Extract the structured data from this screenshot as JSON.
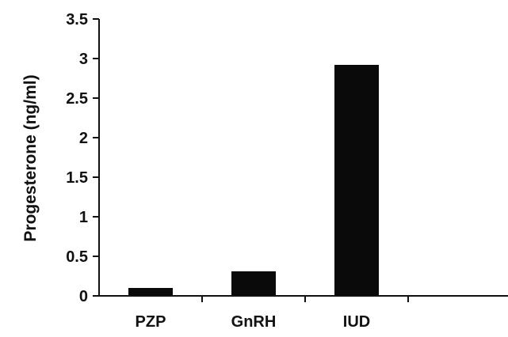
{
  "chart_data": {
    "type": "bar",
    "title": "",
    "xlabel": "",
    "ylabel": "Progesterone (ng/ml)",
    "categories": [
      "PZP",
      "GnRH",
      "IUD"
    ],
    "values": [
      0.1,
      0.31,
      2.92
    ],
    "ylim": [
      0,
      3.5
    ],
    "yticks": [
      "0",
      "0.5",
      "1",
      "1.5",
      "2",
      "2.5",
      "3",
      "3.5"
    ],
    "bar_color": "#0a0a0a",
    "grid": false,
    "legend": "none"
  }
}
